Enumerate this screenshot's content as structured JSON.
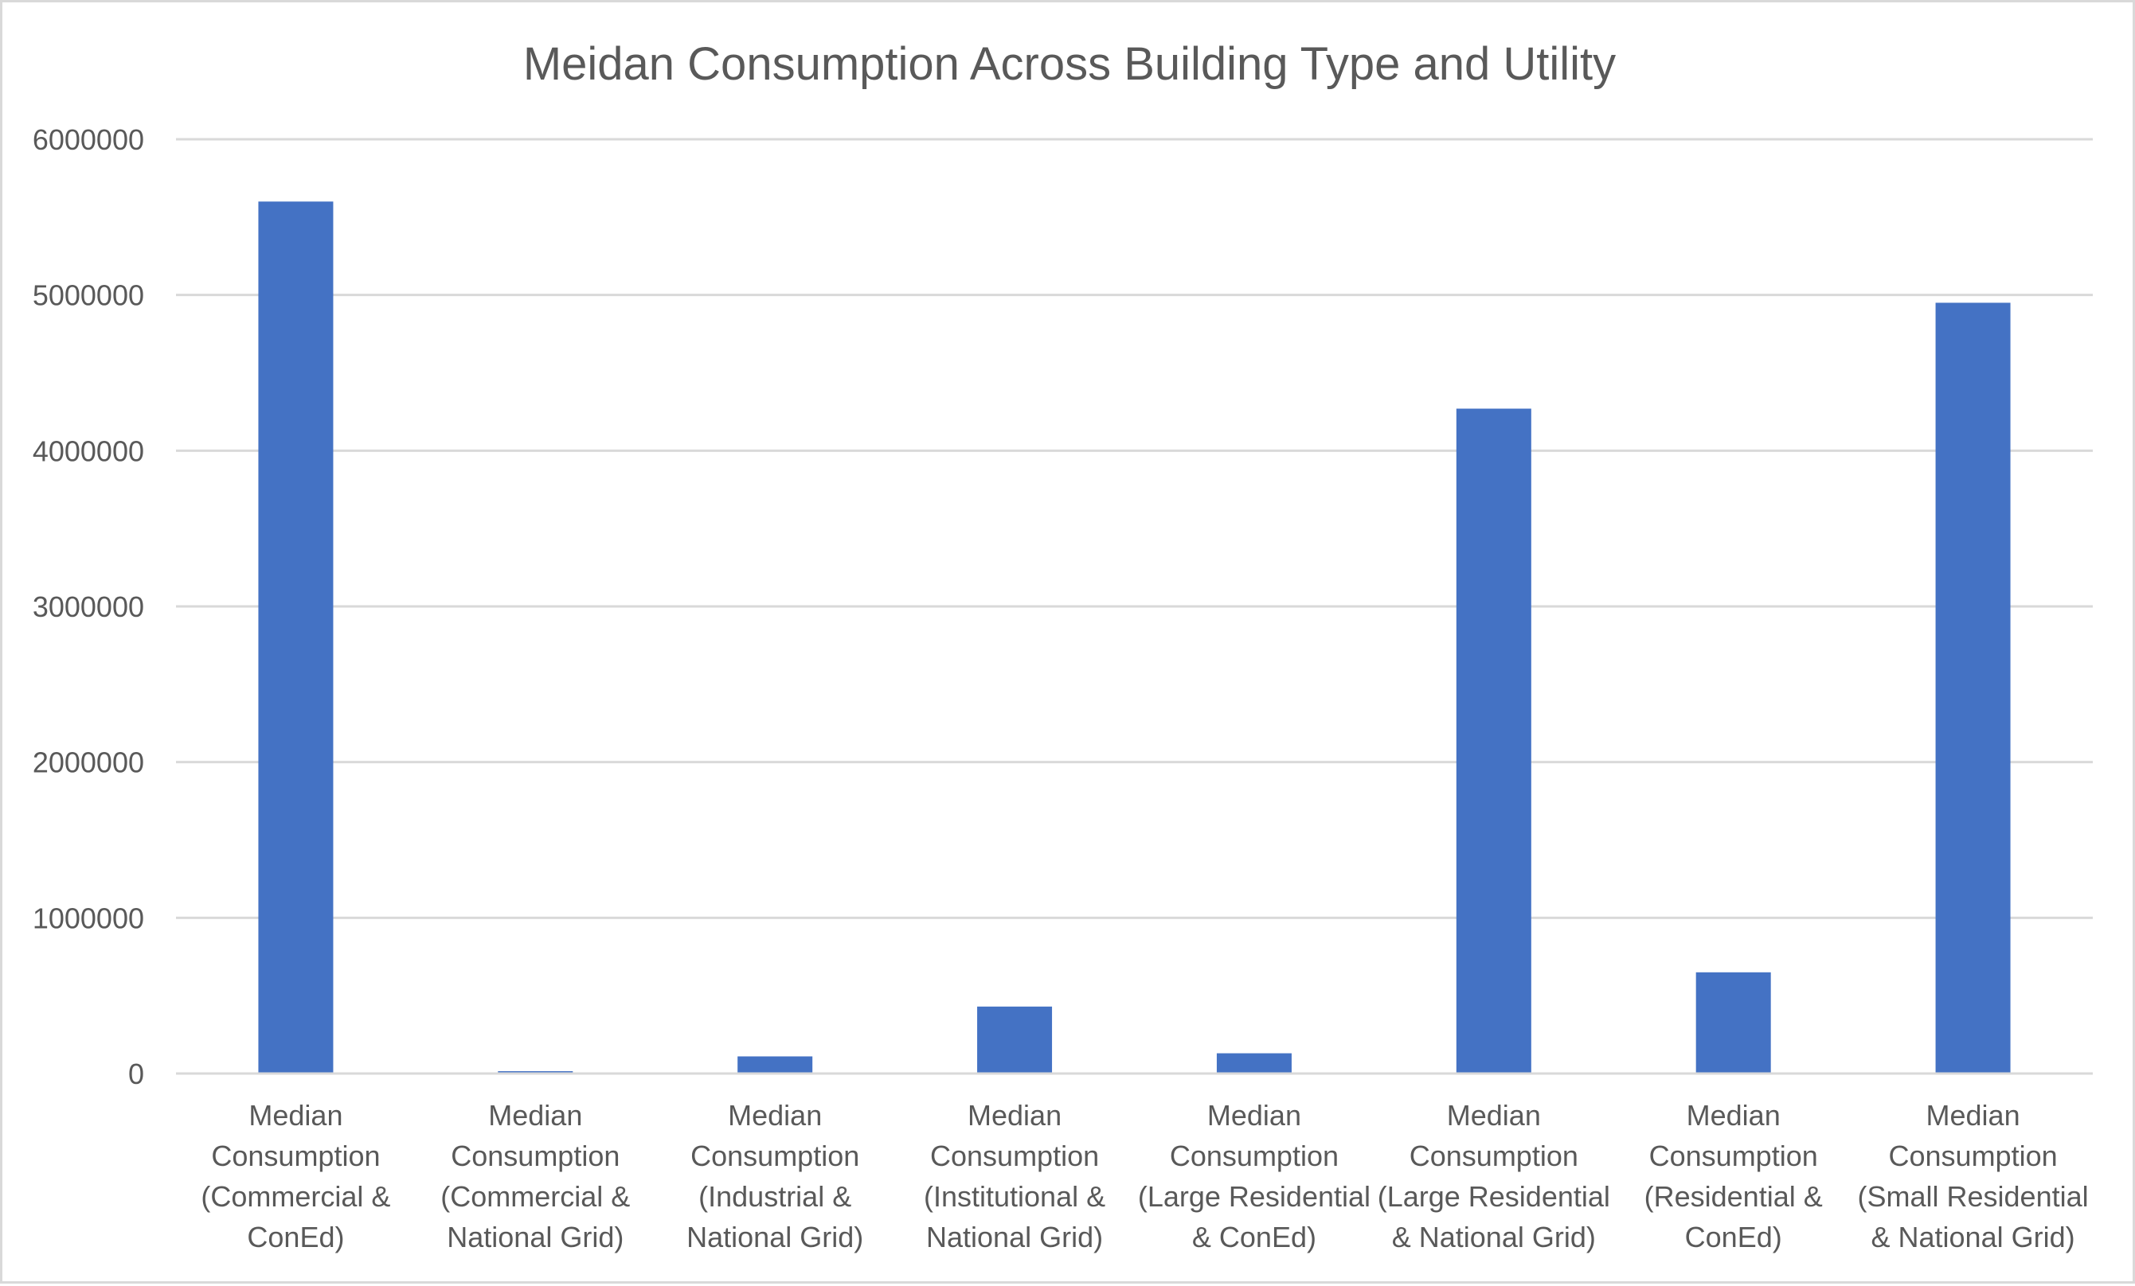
{
  "chart_data": {
    "type": "bar",
    "title": "Meidan Consumption Across Building Type and Utility",
    "xlabel": "",
    "ylabel": "",
    "categories": [
      [
        "Median",
        "Consumption",
        "(Commercial &",
        "ConEd)"
      ],
      [
        "Median",
        "Consumption",
        "(Commercial &",
        "National Grid)"
      ],
      [
        "Median",
        "Consumption",
        "(Industrial &",
        "National Grid)"
      ],
      [
        "Median",
        "Consumption",
        "(Institutional &",
        "National Grid)"
      ],
      [
        "Median",
        "Consumption",
        "(Large Residential",
        "& ConEd)"
      ],
      [
        "Median",
        "Consumption",
        "(Large Residential",
        "& National Grid)"
      ],
      [
        "Median",
        "Consumption",
        "(Residential &",
        "ConEd)"
      ],
      [
        "Median",
        "Consumption",
        "(Small Residential",
        "& National Grid)"
      ]
    ],
    "values": [
      5600000,
      15000,
      110000,
      430000,
      130000,
      4270000,
      650000,
      4950000
    ],
    "ylim": [
      0,
      6000000
    ],
    "yticks": [
      "0",
      "1000000",
      "2000000",
      "3000000",
      "4000000",
      "5000000",
      "6000000"
    ],
    "grid": true,
    "legend": "none",
    "bar_color": "#4472c4",
    "grid_color": "#d9d9d9"
  }
}
